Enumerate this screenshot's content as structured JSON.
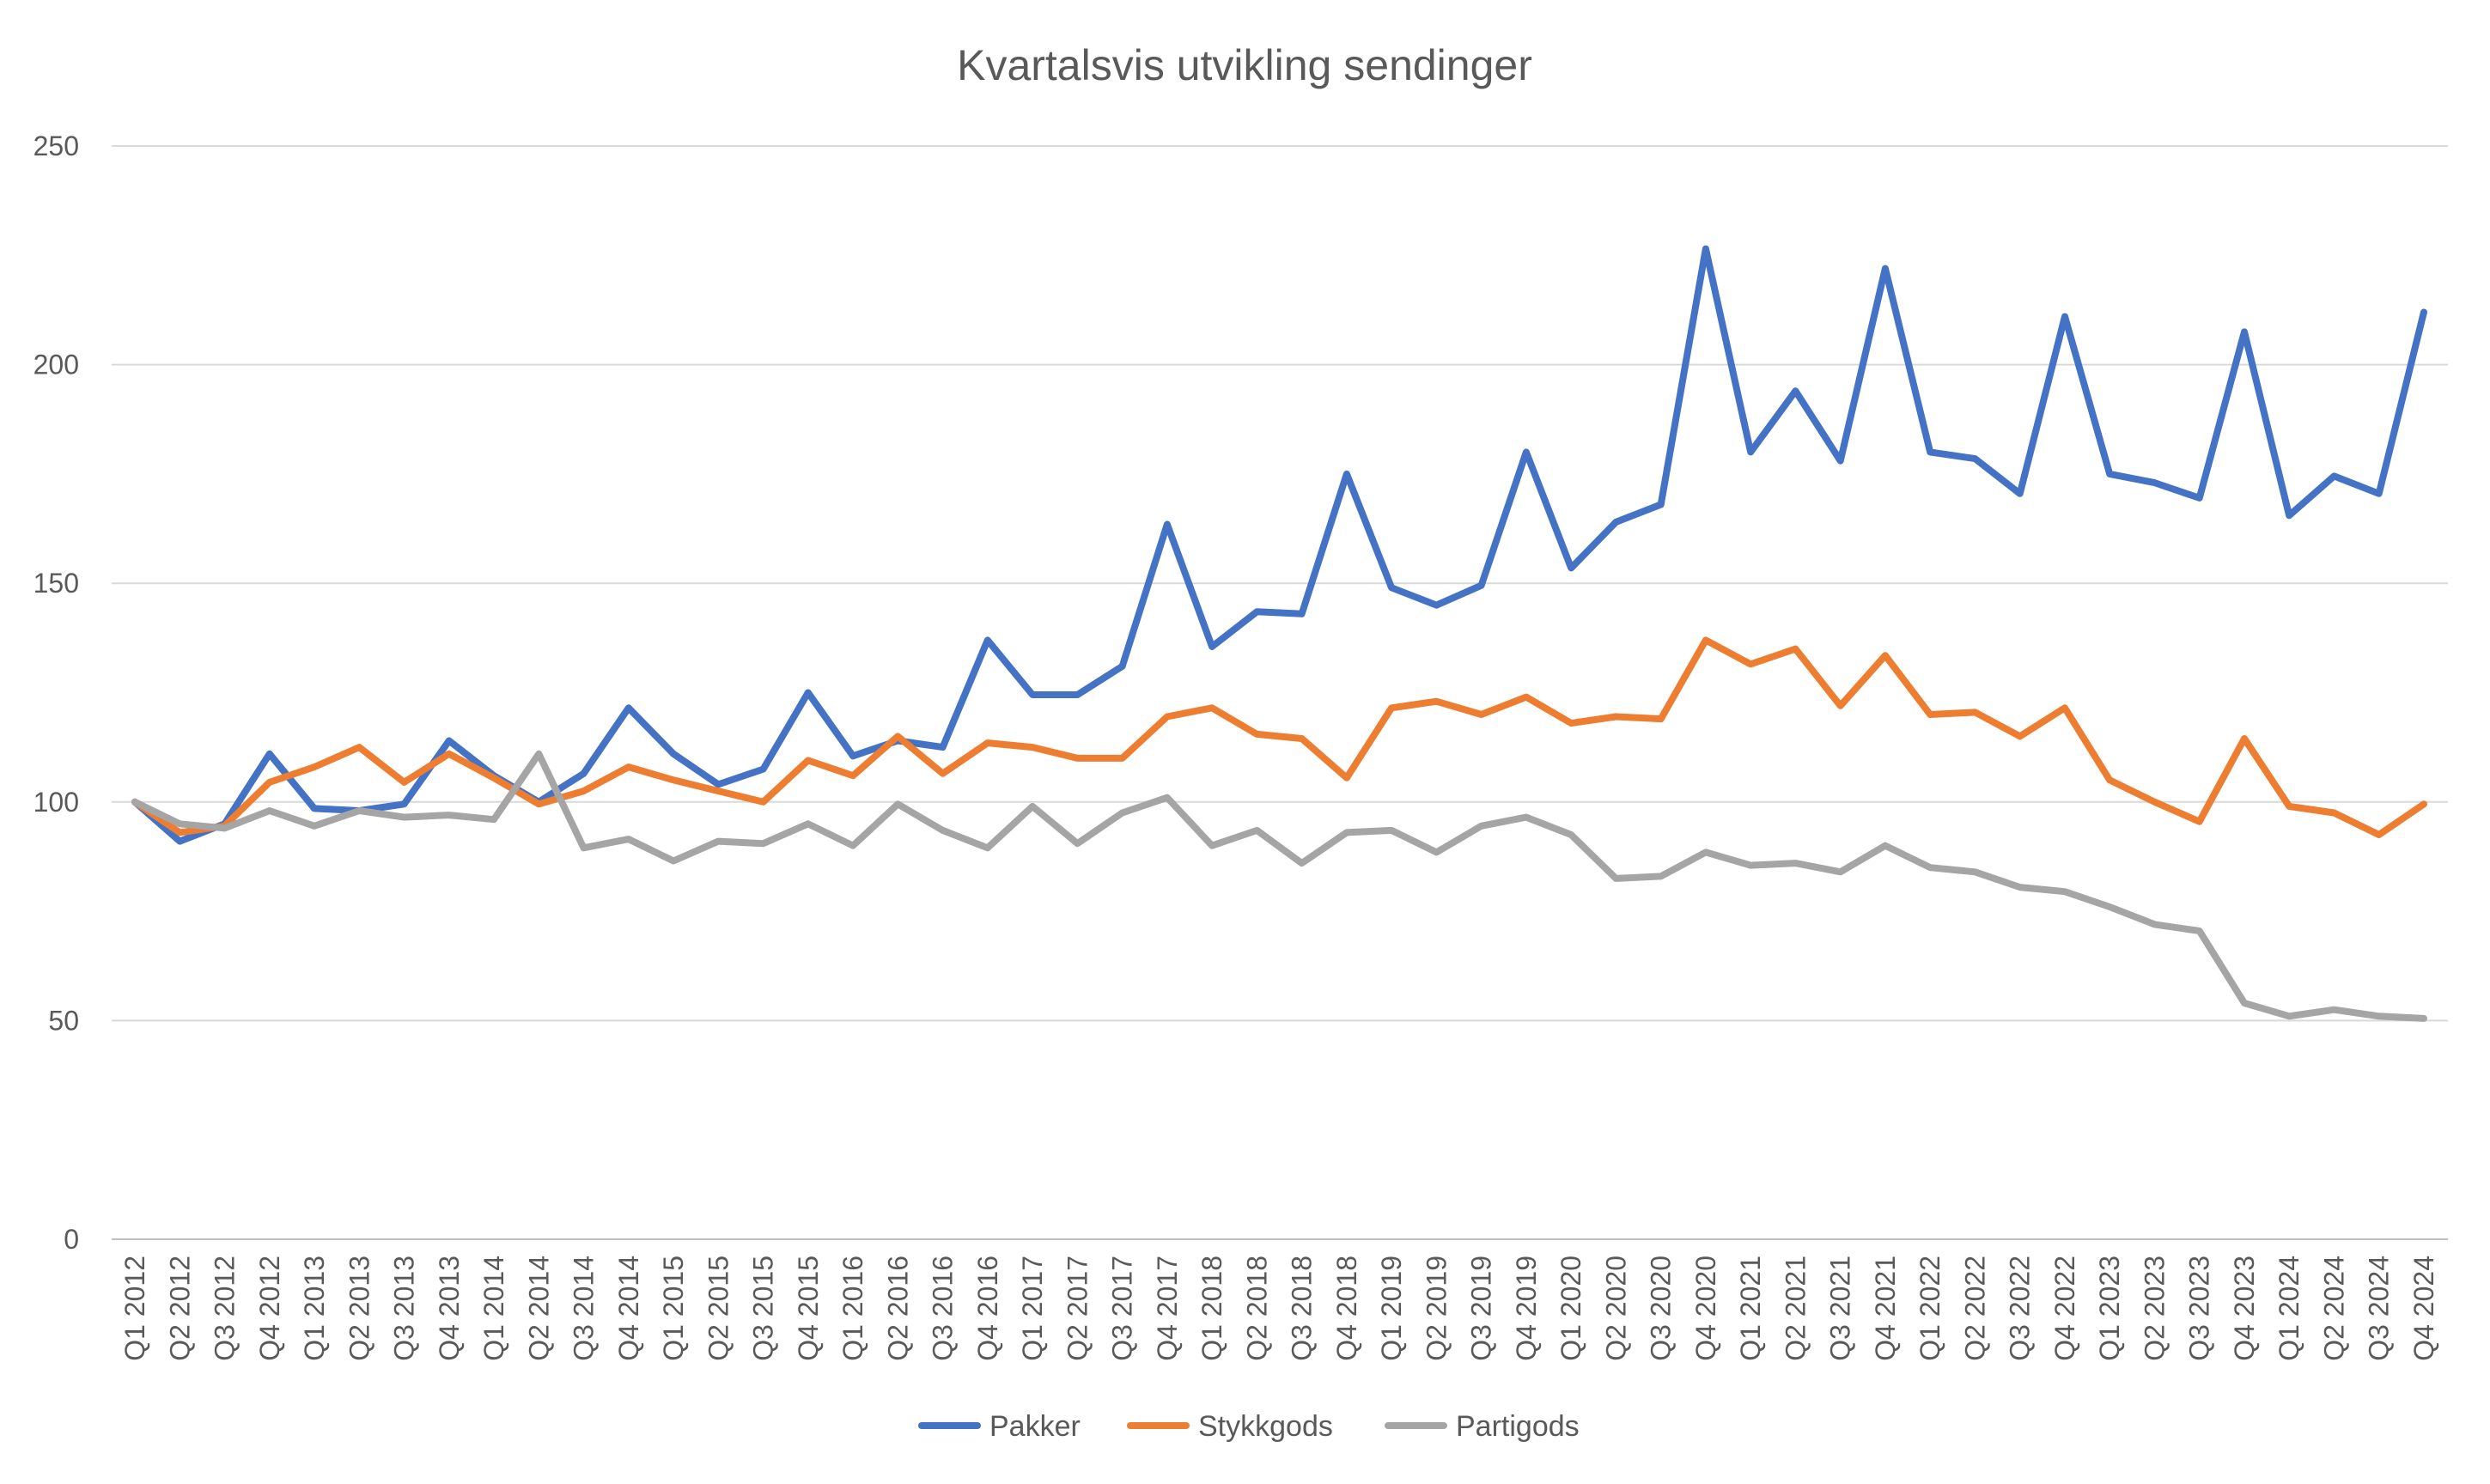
{
  "chart_data": {
    "type": "line",
    "title": "Kvartalsvis utvikling sendinger",
    "xlabel": "",
    "ylabel": "",
    "ylim": [
      0,
      250
    ],
    "yticks": [
      0,
      50,
      100,
      150,
      200,
      250
    ],
    "grid": true,
    "legend_position": "bottom",
    "categories": [
      "Q1 2012",
      "Q2 2012",
      "Q3 2012",
      "Q4 2012",
      "Q1 2013",
      "Q2 2013",
      "Q3 2013",
      "Q4 2013",
      "Q1 2014",
      "Q2 2014",
      "Q3 2014",
      "Q4 2014",
      "Q1 2015",
      "Q2 2015",
      "Q3 2015",
      "Q4 2015",
      "Q1 2016",
      "Q2 2016",
      "Q3 2016",
      "Q4 2016",
      "Q1 2017",
      "Q2 2017",
      "Q3 2017",
      "Q4 2017",
      "Q1 2018",
      "Q2 2018",
      "Q3 2018",
      "Q4 2018",
      "Q1 2019",
      "Q2 2019",
      "Q3 2019",
      "Q4 2019",
      "Q1 2020",
      "Q2 2020",
      "Q3 2020",
      "Q4 2020",
      "Q1 2021",
      "Q2 2021",
      "Q3 2021",
      "Q4 2021",
      "Q1 2022",
      "Q2 2022",
      "Q3 2022",
      "Q4 2022",
      "Q1 2023",
      "Q2 2023",
      "Q3 2023",
      "Q4 2023",
      "Q1 2024",
      "Q2 2024",
      "Q3 2024",
      "Q4 2024"
    ],
    "series": [
      {
        "name": "Pakker",
        "color": "#4472c4",
        "values": [
          100,
          91,
          95,
          111,
          98.5,
          98,
          99.5,
          114,
          106,
          100,
          106.5,
          121.5,
          111,
          104,
          107.5,
          125,
          110.5,
          114,
          112.5,
          137,
          124.5,
          124.5,
          131,
          163.5,
          135.5,
          143.5,
          143,
          175,
          149,
          145,
          149.5,
          180,
          153.5,
          164,
          168,
          226.5,
          180,
          194,
          178,
          222,
          180,
          178.5,
          170.5,
          211,
          175,
          173,
          169.5,
          207.5,
          165.5,
          174.5,
          170.5,
          212
        ]
      },
      {
        "name": "Stykkgods",
        "color": "#ed7d31",
        "values": [
          100,
          93,
          94.5,
          104.5,
          108,
          112.5,
          104.5,
          111,
          105.5,
          99.5,
          102.5,
          108,
          105,
          102.5,
          100,
          109.5,
          106,
          115,
          106.5,
          113.5,
          112.5,
          110,
          110,
          119.5,
          121.5,
          115.5,
          114.5,
          105.5,
          121.5,
          123,
          120,
          124,
          118,
          119.5,
          119,
          137,
          131.5,
          135,
          122,
          133.5,
          120,
          120.5,
          115,
          121.5,
          105,
          100,
          95.5,
          114.5,
          99,
          97.5,
          92.5,
          99.5
        ]
      },
      {
        "name": "Partigods",
        "color": "#a5a5a5",
        "values": [
          100,
          95,
          94,
          98,
          94.5,
          98,
          96.5,
          97,
          96,
          111,
          89.5,
          91.5,
          86.5,
          91,
          90.5,
          95,
          90,
          99.5,
          93.5,
          89.5,
          99,
          90.5,
          97.5,
          101,
          90,
          93.5,
          86,
          93,
          93.5,
          88.5,
          94.5,
          96.5,
          92.5,
          82.5,
          83,
          88.5,
          85.5,
          86,
          84,
          90,
          85,
          84,
          80.5,
          79.5,
          76,
          72,
          70.5,
          54,
          51,
          52.5,
          51,
          50.5
        ]
      }
    ]
  }
}
